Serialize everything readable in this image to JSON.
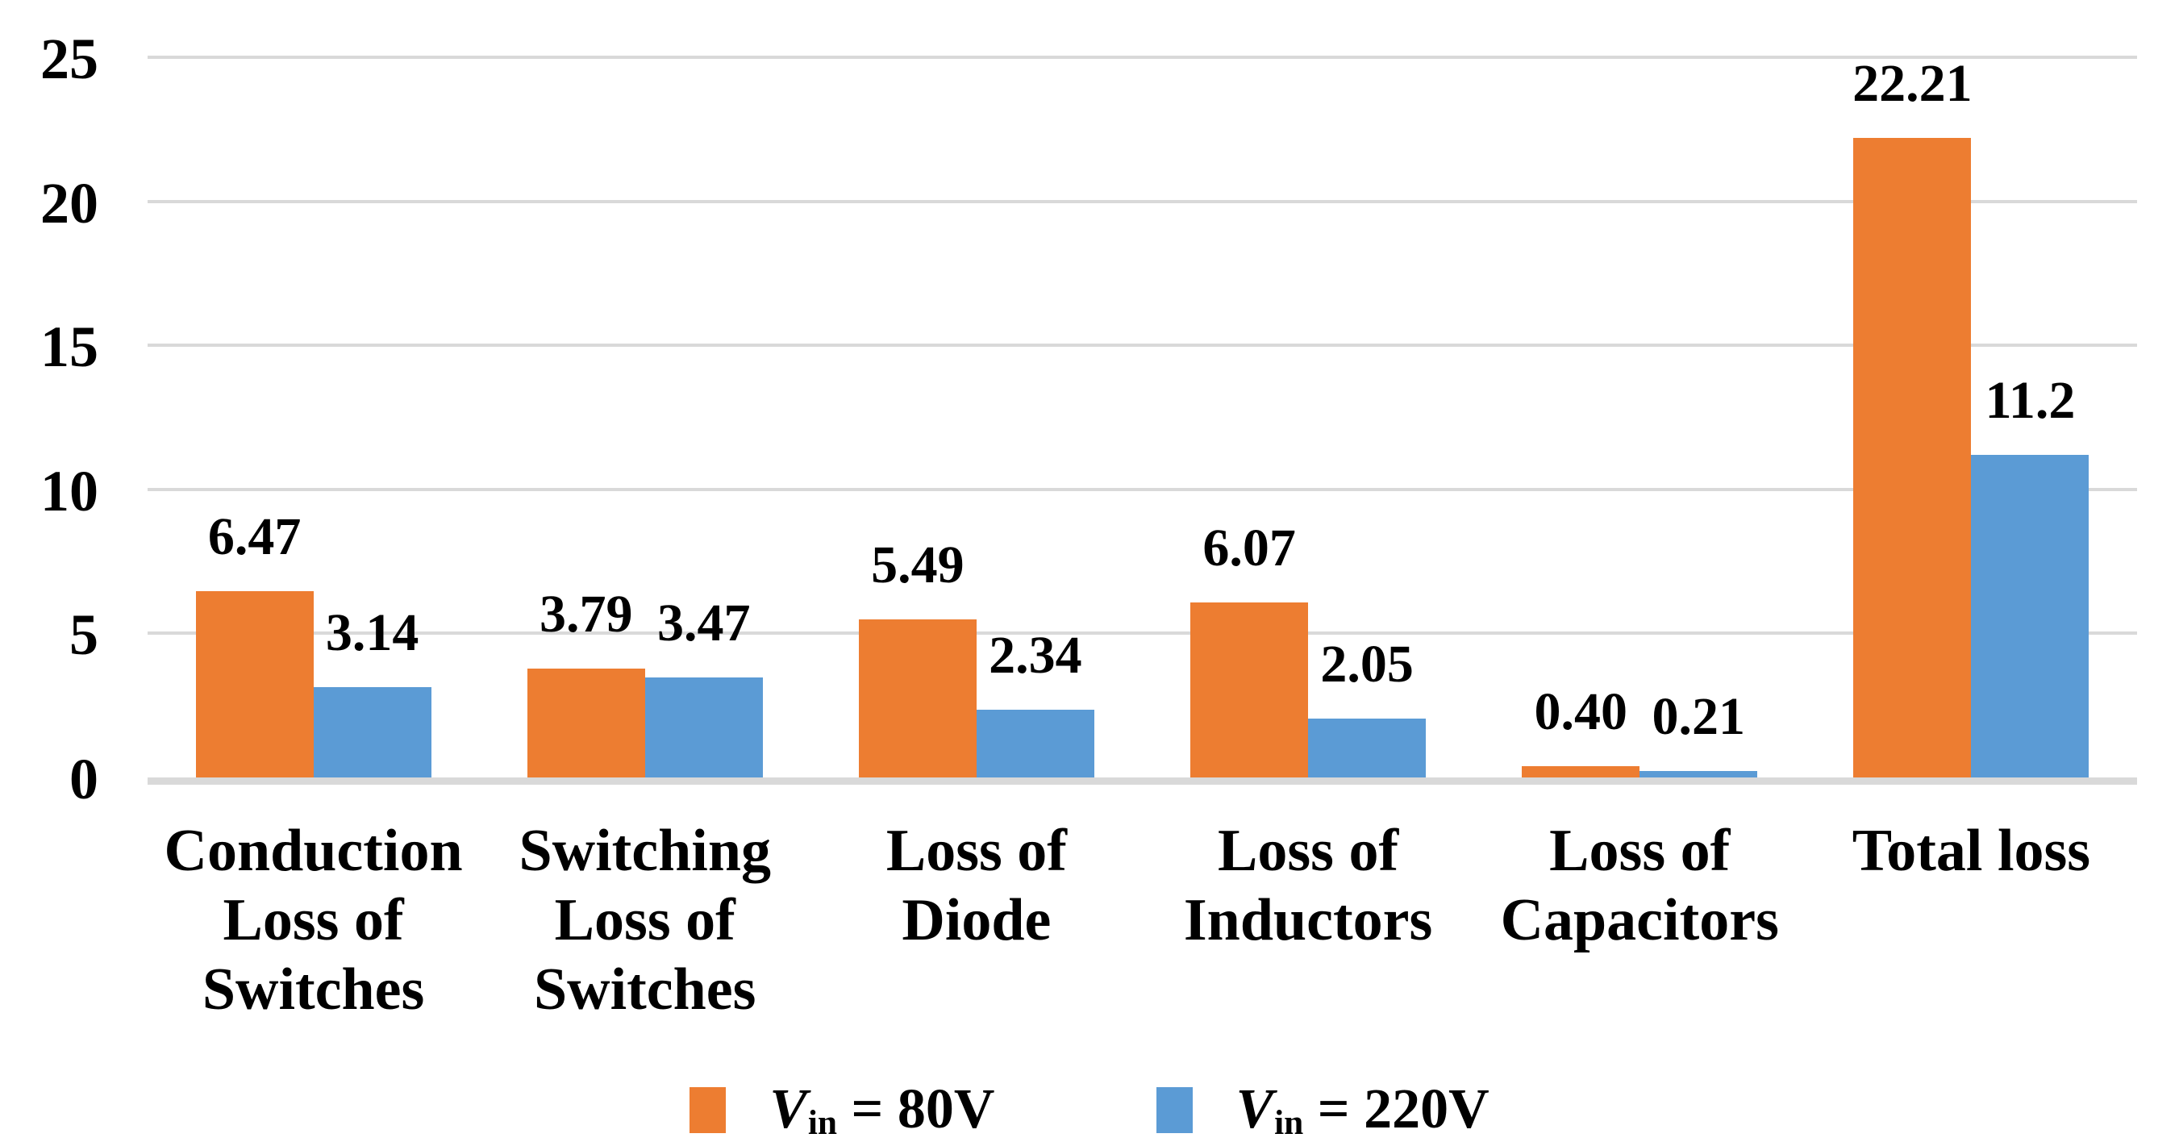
{
  "chart_data": {
    "type": "bar",
    "title": "",
    "categories": [
      "Conduction\nLoss of\nSwitches",
      "Switching\nLoss of\nSwitches",
      "Loss of\nDiode",
      "Loss of\nInductors",
      "Loss of\nCapacitors",
      "Total loss"
    ],
    "series": [
      {
        "name": "Vin = 80V",
        "color": "#ED7D31",
        "values": [
          6.47,
          3.79,
          5.49,
          6.07,
          0.4,
          22.21
        ],
        "labels": [
          "6.47",
          "3.79",
          "5.49",
          "6.07",
          "0.40",
          "22.21"
        ],
        "legend": {
          "symbol": "V",
          "subscript": "in",
          "rest": " = 80V"
        }
      },
      {
        "name": "Vin = 220V",
        "color": "#5B9BD5",
        "values": [
          3.14,
          3.47,
          2.34,
          2.05,
          0.21,
          11.2
        ],
        "labels": [
          "3.14",
          "3.47",
          "2.34",
          "2.05",
          "0.21",
          "11.2"
        ],
        "legend": {
          "symbol": "V",
          "subscript": "in",
          "rest": " = 220V"
        }
      }
    ],
    "y_axis": {
      "min": 0,
      "max": 25,
      "tick_step": 5,
      "ticks": [
        "0",
        "5",
        "10",
        "15",
        "20",
        "25"
      ]
    },
    "x_axis": {
      "label": ""
    },
    "grid": true,
    "legend_position": "bottom",
    "colors": {
      "grid": "#D9D9D9",
      "text": "#000000",
      "background": "#FFFFFF"
    }
  }
}
